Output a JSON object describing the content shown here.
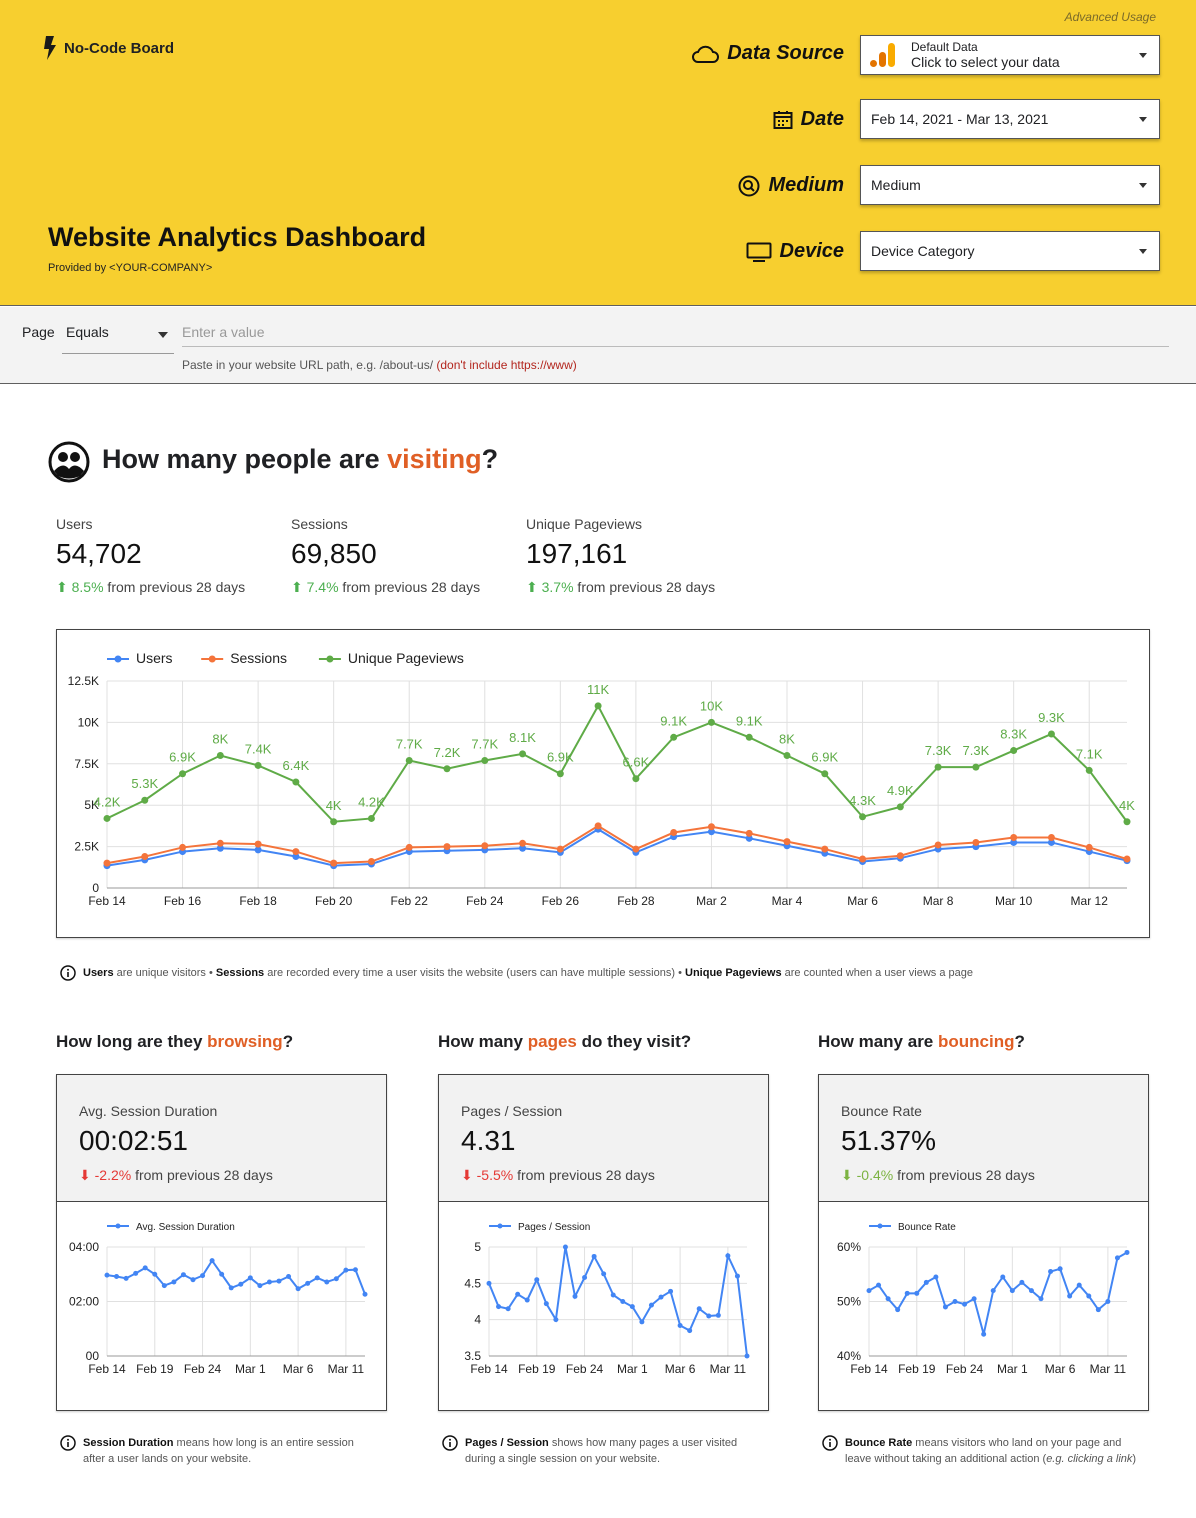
{
  "header": {
    "advanced_usage": "Advanced Usage",
    "logo_text": "No-Code Board",
    "title": "Website Analytics Dashboard",
    "provided_by": "Provided by <YOUR-COMPANY>",
    "data_source": {
      "label": "Data Source",
      "line1": "Default Data",
      "line2": "Click to select your data"
    },
    "date": {
      "label": "Date",
      "value": "Feb 14, 2021 - Mar 13, 2021"
    },
    "medium": {
      "label": "Medium",
      "value": "Medium"
    },
    "device": {
      "label": "Device",
      "value": "Device Category"
    }
  },
  "filter": {
    "page_label": "Page",
    "operator": "Equals",
    "placeholder": "Enter a value",
    "hint_text": "Paste in your website URL path, e.g. /about-us/ ",
    "hint_warning": "(don't include https://www)"
  },
  "visiting": {
    "title_prefix": "How many people are ",
    "title_highlight": "visiting",
    "title_suffix": "?",
    "kpis": [
      {
        "label": "Users",
        "value": "54,702",
        "change": "8.5%",
        "change_text": " from previous 28 days",
        "direction": "up"
      },
      {
        "label": "Sessions",
        "value": "69,850",
        "change": "7.4%",
        "change_text": " from previous 28 days",
        "direction": "up"
      },
      {
        "label": "Unique Pageviews",
        "value": "197,161",
        "change": "3.7%",
        "change_text": " from previous 28 days",
        "direction": "up"
      }
    ],
    "note": {
      "users_b": "Users",
      "users_t": " are unique visitors • ",
      "sessions_b": "Sessions",
      "sessions_t": " are recorded every time a user visits the website (users can have multiple sessions) • ",
      "pv_b": "Unique Pageviews",
      "pv_t": " are counted when a user views a page"
    }
  },
  "cards": [
    {
      "title_prefix": "How long are they ",
      "title_highlight": "browsing",
      "title_suffix": "?",
      "label": "Avg. Session Duration",
      "value": "00:02:51",
      "change": "-2.2%",
      "change_text": " from previous 28 days",
      "direction": "down",
      "change_color": "#e53935",
      "note_b": "Session Duration",
      "note_t1": " means how long is an entire session",
      "note_t2": "after a user lands on your website.",
      "note_i": ""
    },
    {
      "title_prefix": "How many ",
      "title_highlight": "pages",
      "title_suffix": " do they visit?",
      "label": "Pages / Session",
      "value": "4.31",
      "change": "-5.5%",
      "change_text": " from previous 28 days",
      "direction": "down",
      "change_color": "#e53935",
      "note_b": "Pages / Session",
      "note_t1": " shows how many pages a user visited",
      "note_t2": "during a single session on your website.",
      "note_i": ""
    },
    {
      "title_prefix": "How many are ",
      "title_highlight": "bouncing",
      "title_suffix": "?",
      "label": "Bounce Rate",
      "value": "51.37%",
      "change": "-0.4%",
      "change_text": " from previous 28 days",
      "direction": "down",
      "change_color": "#7cb342",
      "note_b": "Bounce Rate",
      "note_t1": " means visitors who land on your page and",
      "note_t2": "leave without taking an additional action (",
      "note_i": "e.g. clicking a link",
      "note_t3": ")"
    }
  ],
  "colors": {
    "header_bg": "#f7cf2f",
    "accent_orange": "#e05f25",
    "users": "#4285f4",
    "sessions": "#f4743b",
    "pageviews": "#5fab47"
  },
  "chart_data": [
    {
      "type": "line",
      "title": "",
      "x": [
        "Feb 14",
        "Feb 15",
        "Feb 16",
        "Feb 17",
        "Feb 18",
        "Feb 19",
        "Feb 20",
        "Feb 21",
        "Feb 22",
        "Feb 23",
        "Feb 24",
        "Feb 25",
        "Feb 26",
        "Feb 27",
        "Feb 28",
        "Mar 1",
        "Mar 2",
        "Mar 3",
        "Mar 4",
        "Mar 5",
        "Mar 6",
        "Mar 7",
        "Mar 8",
        "Mar 9",
        "Mar 10",
        "Mar 11",
        "Mar 12",
        "Mar 13"
      ],
      "xticks": [
        "Feb 14",
        "Feb 16",
        "Feb 18",
        "Feb 20",
        "Feb 22",
        "Feb 24",
        "Feb 26",
        "Feb 28",
        "Mar 2",
        "Mar 4",
        "Mar 6",
        "Mar 8",
        "Mar 10",
        "Mar 12"
      ],
      "yticks": [
        "0",
        "2.5K",
        "5K",
        "7.5K",
        "10K",
        "12.5K"
      ],
      "ylim": [
        0,
        12500
      ],
      "legend_position": "top-left",
      "series": [
        {
          "name": "Users",
          "color": "#4285f4",
          "values": [
            1350,
            1700,
            2200,
            2400,
            2300,
            1900,
            1350,
            1450,
            2200,
            2250,
            2300,
            2400,
            2150,
            3550,
            2150,
            3100,
            3400,
            3000,
            2550,
            2100,
            1600,
            1800,
            2350,
            2500,
            2750,
            2750,
            2200,
            1650
          ]
        },
        {
          "name": "Sessions",
          "color": "#f4743b",
          "values": [
            1500,
            1900,
            2450,
            2700,
            2650,
            2200,
            1500,
            1600,
            2450,
            2500,
            2550,
            2700,
            2350,
            3750,
            2350,
            3350,
            3700,
            3300,
            2800,
            2350,
            1750,
            1950,
            2600,
            2750,
            3050,
            3050,
            2450,
            1750
          ]
        },
        {
          "name": "Unique Pageviews",
          "color": "#5fab47",
          "values": [
            4200,
            5300,
            6900,
            8000,
            7400,
            6400,
            4000,
            4200,
            7700,
            7200,
            7700,
            8100,
            6900,
            11000,
            6600,
            9100,
            10000,
            9100,
            8000,
            6900,
            4300,
            4900,
            7300,
            7300,
            8300,
            9300,
            7100,
            4000
          ],
          "labels": [
            "4.2K",
            "5.3K",
            "6.9K",
            "8K",
            "7.4K",
            "6.4K",
            "4K",
            "4.2K",
            "7.7K",
            "7.2K",
            "7.7K",
            "8.1K",
            "6.9K",
            "11K",
            "6.6K",
            "9.1K",
            "10K",
            "9.1K",
            "8K",
            "6.9K",
            "4.3K",
            "4.9K",
            "7.3K",
            "7.3K",
            "8.3K",
            "9.3K",
            "7.1K",
            "4K"
          ]
        }
      ]
    },
    {
      "type": "line",
      "xticks": [
        "Feb 14",
        "Feb 19",
        "Feb 24",
        "Mar 1",
        "Mar 6",
        "Mar 11"
      ],
      "yticks": [
        "00",
        "02:00",
        "04:00"
      ],
      "ylim": [
        0,
        240
      ],
      "series": [
        {
          "name": "Avg. Session Duration",
          "color": "#4285f4",
          "values": [
            178,
            175,
            171,
            182,
            194,
            180,
            155,
            163,
            179,
            168,
            177,
            210,
            180,
            150,
            158,
            172,
            155,
            163,
            165,
            175,
            148,
            160,
            172,
            163,
            170,
            189,
            190,
            136
          ]
        }
      ]
    },
    {
      "type": "line",
      "xticks": [
        "Feb 14",
        "Feb 19",
        "Feb 24",
        "Mar 1",
        "Mar 6",
        "Mar 11"
      ],
      "yticks": [
        "3.5",
        "4",
        "4.5",
        "5"
      ],
      "ylim": [
        3.5,
        5
      ],
      "series": [
        {
          "name": "Pages / Session",
          "color": "#4285f4",
          "values": [
            4.5,
            4.18,
            4.15,
            4.35,
            4.27,
            4.55,
            4.22,
            4.0,
            5.0,
            4.32,
            4.58,
            4.87,
            4.63,
            4.34,
            4.25,
            4.18,
            3.97,
            4.2,
            4.31,
            4.39,
            3.92,
            3.85,
            4.15,
            4.05,
            4.06,
            4.88,
            4.6,
            3.5
          ]
        }
      ]
    },
    {
      "type": "line",
      "xticks": [
        "Feb 14",
        "Feb 19",
        "Feb 24",
        "Mar 1",
        "Mar 6",
        "Mar 11"
      ],
      "yticks": [
        "40%",
        "50%",
        "60%"
      ],
      "ylim": [
        40,
        60
      ],
      "series": [
        {
          "name": "Bounce Rate",
          "color": "#4285f4",
          "values": [
            52,
            53,
            50.5,
            48.5,
            51.5,
            51.5,
            53.5,
            54.5,
            49,
            50,
            49.5,
            50.5,
            44,
            52,
            54.5,
            52,
            53.5,
            52,
            50.5,
            55.5,
            56,
            51,
            53,
            51,
            48.5,
            50,
            58,
            59
          ]
        }
      ]
    }
  ]
}
